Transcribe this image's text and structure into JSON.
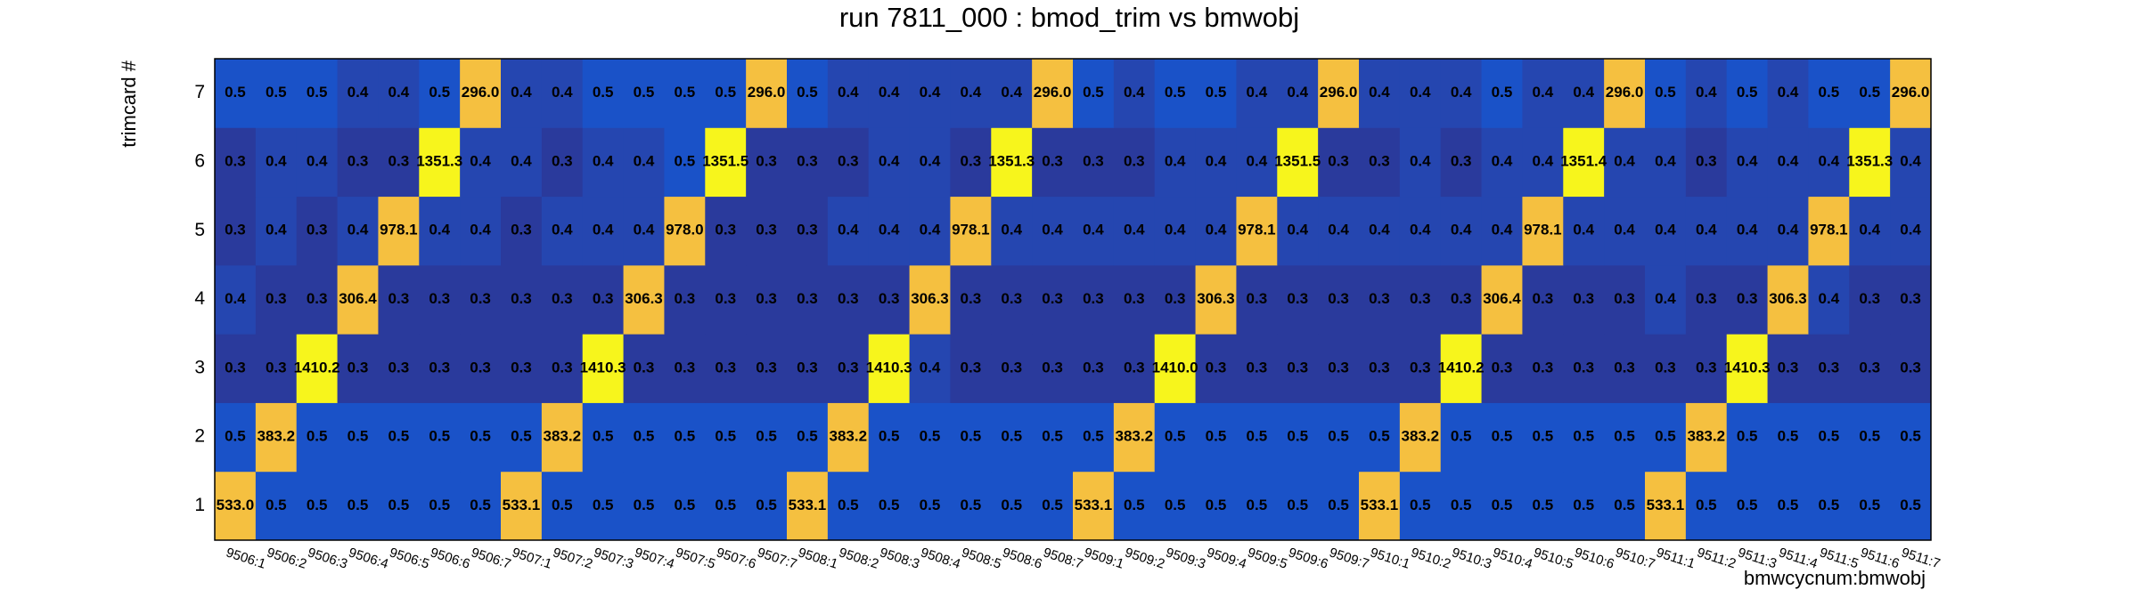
{
  "chart_data": {
    "type": "heatmap",
    "title": "run 7811_000 : bmod_trim vs bmwobj",
    "x_label": "bmwcycnum:bmwobj",
    "y_label": "trimcard #",
    "categories": [
      "9506:1",
      "9506:2",
      "9506:3",
      "9506:4",
      "9506:5",
      "9506:6",
      "9506:7",
      "9507:1",
      "9507:2",
      "9507:3",
      "9507:4",
      "9507:5",
      "9507:6",
      "9507:7",
      "9508:1",
      "9508:2",
      "9508:3",
      "9508:4",
      "9508:5",
      "9508:6",
      "9508:7",
      "9509:1",
      "9509:2",
      "9509:3",
      "9509:4",
      "9509:5",
      "9509:6",
      "9509:7",
      "9510:1",
      "9510:2",
      "9510:3",
      "9510:4",
      "9510:5",
      "9510:6",
      "9510:7",
      "9511:1",
      "9511:2",
      "9511:3",
      "9511:4",
      "9511:5",
      "9511:6",
      "9511:7"
    ],
    "y_categories": [
      "1",
      "2",
      "3",
      "4",
      "5",
      "6",
      "7"
    ],
    "values": [
      [
        533.0,
        0.5,
        0.5,
        0.5,
        0.5,
        0.5,
        0.5,
        533.1,
        0.5,
        0.5,
        0.5,
        0.5,
        0.5,
        0.5,
        533.1,
        0.5,
        0.5,
        0.5,
        0.5,
        0.5,
        0.5,
        533.1,
        0.5,
        0.5,
        0.5,
        0.5,
        0.5,
        0.5,
        533.1,
        0.5,
        0.5,
        0.5,
        0.5,
        0.5,
        0.5,
        533.1,
        0.5,
        0.5,
        0.5,
        0.5,
        0.5,
        0.5
      ],
      [
        0.5,
        383.2,
        0.5,
        0.5,
        0.5,
        0.5,
        0.5,
        0.5,
        383.2,
        0.5,
        0.5,
        0.5,
        0.5,
        0.5,
        0.5,
        383.2,
        0.5,
        0.5,
        0.5,
        0.5,
        0.5,
        0.5,
        383.2,
        0.5,
        0.5,
        0.5,
        0.5,
        0.5,
        0.5,
        383.2,
        0.5,
        0.5,
        0.5,
        0.5,
        0.5,
        0.5,
        383.2,
        0.5,
        0.5,
        0.5,
        0.5,
        0.5
      ],
      [
        0.3,
        0.3,
        1410.2,
        0.3,
        0.3,
        0.3,
        0.3,
        0.3,
        0.3,
        1410.3,
        0.3,
        0.3,
        0.3,
        0.3,
        0.3,
        0.3,
        1410.3,
        0.4,
        0.3,
        0.3,
        0.3,
        0.3,
        0.3,
        1410.0,
        0.3,
        0.3,
        0.3,
        0.3,
        0.3,
        0.3,
        1410.2,
        0.3,
        0.3,
        0.3,
        0.3,
        0.3,
        0.3,
        1410.3,
        0.3,
        0.3,
        0.3,
        0.3
      ],
      [
        0.4,
        0.3,
        0.3,
        306.4,
        0.3,
        0.3,
        0.3,
        0.3,
        0.3,
        0.3,
        306.3,
        0.3,
        0.3,
        0.3,
        0.3,
        0.3,
        0.3,
        306.3,
        0.3,
        0.3,
        0.3,
        0.3,
        0.3,
        0.3,
        306.3,
        0.3,
        0.3,
        0.3,
        0.3,
        0.3,
        0.3,
        306.4,
        0.3,
        0.3,
        0.3,
        0.4,
        0.3,
        0.3,
        306.3,
        0.4,
        0.3,
        0.3
      ],
      [
        0.3,
        0.4,
        0.3,
        0.4,
        978.1,
        0.4,
        0.4,
        0.3,
        0.4,
        0.4,
        0.4,
        978.0,
        0.3,
        0.3,
        0.3,
        0.4,
        0.4,
        0.4,
        978.1,
        0.4,
        0.4,
        0.4,
        0.4,
        0.4,
        0.4,
        978.1,
        0.4,
        0.4,
        0.4,
        0.4,
        0.4,
        0.4,
        978.1,
        0.4,
        0.4,
        0.4,
        0.4,
        0.4,
        0.4,
        978.1,
        0.4,
        0.4
      ],
      [
        0.3,
        0.4,
        0.4,
        0.3,
        0.3,
        1351.3,
        0.4,
        0.4,
        0.3,
        0.4,
        0.4,
        0.5,
        1351.5,
        0.3,
        0.3,
        0.3,
        0.4,
        0.4,
        0.3,
        1351.3,
        0.3,
        0.3,
        0.3,
        0.4,
        0.4,
        0.4,
        1351.5,
        0.3,
        0.3,
        0.4,
        0.3,
        0.4,
        0.4,
        1351.4,
        0.4,
        0.4,
        0.3,
        0.4,
        0.4,
        0.4,
        1351.3,
        0.4
      ],
      [
        0.5,
        0.5,
        0.5,
        0.4,
        0.4,
        0.5,
        296.0,
        0.4,
        0.4,
        0.5,
        0.5,
        0.5,
        0.5,
        296.0,
        0.5,
        0.4,
        0.4,
        0.4,
        0.4,
        0.4,
        296.0,
        0.5,
        0.4,
        0.5,
        0.5,
        0.4,
        0.4,
        296.0,
        0.4,
        0.4,
        0.4,
        0.5,
        0.4,
        0.4,
        296.0,
        0.5,
        0.4,
        0.5,
        0.4,
        0.5,
        0.5,
        296.0
      ]
    ],
    "value_labels": [
      [
        "533.0",
        "0.5",
        "0.5",
        "0.5",
        "0.5",
        "0.5",
        "0.5",
        "533.1",
        "0.5",
        "0.5",
        "0.5",
        "0.5",
        "0.5",
        "0.5",
        "533.1",
        "0.5",
        "0.5",
        "0.5",
        "0.5",
        "0.5",
        "0.5",
        "533.1",
        "0.5",
        "0.5",
        "0.5",
        "0.5",
        "0.5",
        "0.5",
        "533.1",
        "0.5",
        "0.5",
        "0.5",
        "0.5",
        "0.5",
        "0.5",
        "533.1",
        "0.5",
        "0.5",
        "0.5",
        "0.5",
        "0.5",
        "0.5"
      ],
      [
        "0.5",
        "383.2",
        "0.5",
        "0.5",
        "0.5",
        "0.5",
        "0.5",
        "0.5",
        "383.2",
        "0.5",
        "0.5",
        "0.5",
        "0.5",
        "0.5",
        "0.5",
        "383.2",
        "0.5",
        "0.5",
        "0.5",
        "0.5",
        "0.5",
        "0.5",
        "383.2",
        "0.5",
        "0.5",
        "0.5",
        "0.5",
        "0.5",
        "0.5",
        "383.2",
        "0.5",
        "0.5",
        "0.5",
        "0.5",
        "0.5",
        "0.5",
        "383.2",
        "0.5",
        "0.5",
        "0.5",
        "0.5",
        "0.5"
      ],
      [
        "0.3",
        "0.3",
        "1410.2",
        "0.3",
        "0.3",
        "0.3",
        "0.3",
        "0.3",
        "0.3",
        "1410.3",
        "0.3",
        "0.3",
        "0.3",
        "0.3",
        "0.3",
        "0.3",
        "1410.3",
        "0.4",
        "0.3",
        "0.3",
        "0.3",
        "0.3",
        "0.3",
        "1410.0",
        "0.3",
        "0.3",
        "0.3",
        "0.3",
        "0.3",
        "0.3",
        "1410.2",
        "0.3",
        "0.3",
        "0.3",
        "0.3",
        "0.3",
        "0.3",
        "1410.3",
        "0.3",
        "0.3",
        "0.3",
        "0.3"
      ],
      [
        "0.4",
        "0.3",
        "0.3",
        "306.4",
        "0.3",
        "0.3",
        "0.3",
        "0.3",
        "0.3",
        "0.3",
        "306.3",
        "0.3",
        "0.3",
        "0.3",
        "0.3",
        "0.3",
        "0.3",
        "306.3",
        "0.3",
        "0.3",
        "0.3",
        "0.3",
        "0.3",
        "0.3",
        "306.3",
        "0.3",
        "0.3",
        "0.3",
        "0.3",
        "0.3",
        "0.3",
        "306.4",
        "0.3",
        "0.3",
        "0.3",
        "0.4",
        "0.3",
        "0.3",
        "306.3",
        "0.4",
        "0.3",
        "0.3"
      ],
      [
        "0.3",
        "0.4",
        "0.3",
        "0.4",
        "978.1",
        "0.4",
        "0.4",
        "0.3",
        "0.4",
        "0.4",
        "0.4",
        "978.0",
        "0.3",
        "0.3",
        "0.3",
        "0.4",
        "0.4",
        "0.4",
        "978.1",
        "0.4",
        "0.4",
        "0.4",
        "0.4",
        "0.4",
        "0.4",
        "978.1",
        "0.4",
        "0.4",
        "0.4",
        "0.4",
        "0.4",
        "0.4",
        "978.1",
        "0.4",
        "0.4",
        "0.4",
        "0.4",
        "0.4",
        "0.4",
        "978.1",
        "0.4",
        "0.4"
      ],
      [
        "0.3",
        "0.4",
        "0.4",
        "0.3",
        "0.3",
        "1351.3",
        "0.4",
        "0.4",
        "0.3",
        "0.4",
        "0.4",
        "0.5",
        "1351.5",
        "0.3",
        "0.3",
        "0.3",
        "0.4",
        "0.4",
        "0.3",
        "1351.3",
        "0.3",
        "0.3",
        "0.3",
        "0.4",
        "0.4",
        "0.4",
        "1351.5",
        "0.3",
        "0.3",
        "0.4",
        "0.3",
        "0.4",
        "0.4",
        "1351.4",
        "0.4",
        "0.4",
        "0.3",
        "0.4",
        "0.4",
        "0.4",
        "1351.3",
        "0.4"
      ],
      [
        "0.5",
        "0.5",
        "0.5",
        "0.4",
        "0.4",
        "0.5",
        "296.0",
        "0.4",
        "0.4",
        "0.5",
        "0.5",
        "0.5",
        "0.5",
        "296.0",
        "0.5",
        "0.4",
        "0.4",
        "0.4",
        "0.4",
        "0.4",
        "296.0",
        "0.5",
        "0.4",
        "0.5",
        "0.5",
        "0.4",
        "0.4",
        "296.0",
        "0.4",
        "0.4",
        "0.4",
        "0.5",
        "0.4",
        "0.4",
        "296.0",
        "0.5",
        "0.4",
        "0.5",
        "0.4",
        "0.5",
        "0.5",
        "296.0"
      ]
    ]
  }
}
